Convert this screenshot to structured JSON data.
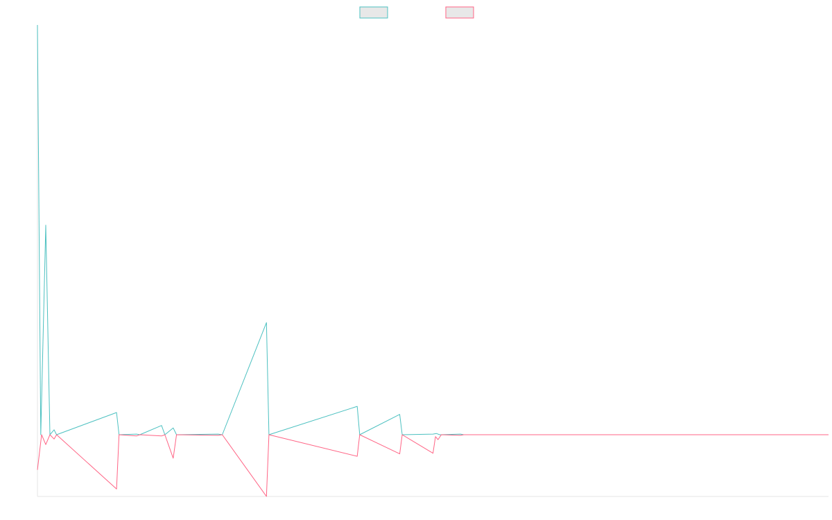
{
  "chart_data": {
    "type": "line",
    "title": "",
    "xlabel": "",
    "ylabel": "",
    "grid": false,
    "legend_position": "top",
    "y_baseline": 0,
    "ylim": [
      -100,
      665
    ],
    "xlim": [
      0,
      95
    ],
    "series": [
      {
        "name": "",
        "color": "#4bc0c0",
        "legend_fill": "#e8e8e8",
        "points": [
          [
            0,
            665
          ],
          [
            0.4,
            0
          ],
          [
            1,
            340
          ],
          [
            1.5,
            0
          ],
          [
            2,
            8
          ],
          [
            2.3,
            0
          ],
          [
            9.5,
            36
          ],
          [
            9.8,
            0
          ],
          [
            11.9,
            1
          ],
          [
            12.3,
            0
          ],
          [
            14.9,
            15
          ],
          [
            15.3,
            0
          ],
          [
            16.3,
            11
          ],
          [
            16.7,
            0
          ],
          [
            21.7,
            1
          ],
          [
            22.2,
            0
          ],
          [
            27.5,
            182
          ],
          [
            27.8,
            0
          ],
          [
            38.4,
            46
          ],
          [
            38.7,
            0
          ],
          [
            43.5,
            33
          ],
          [
            43.8,
            0
          ],
          [
            47.5,
            1
          ],
          [
            47.9,
            2
          ],
          [
            48.3,
            0
          ],
          [
            50.8,
            1
          ],
          [
            51.2,
            0
          ],
          [
            95,
            0
          ]
        ]
      },
      {
        "name": "",
        "color": "#ff6384",
        "legend_fill": "#e8e8e8",
        "points": [
          [
            0,
            -57
          ],
          [
            0.5,
            0
          ],
          [
            1,
            -16
          ],
          [
            1.5,
            0
          ],
          [
            2,
            -7
          ],
          [
            2.3,
            0
          ],
          [
            9.5,
            -88
          ],
          [
            9.8,
            0
          ],
          [
            11.9,
            -2
          ],
          [
            12.3,
            0
          ],
          [
            14.9,
            -2
          ],
          [
            15.3,
            0
          ],
          [
            16.3,
            -38
          ],
          [
            16.7,
            0
          ],
          [
            21.7,
            -1
          ],
          [
            22.2,
            0
          ],
          [
            27.5,
            -100
          ],
          [
            27.8,
            0
          ],
          [
            38.4,
            -35
          ],
          [
            38.7,
            0
          ],
          [
            43.5,
            -31
          ],
          [
            43.8,
            0
          ],
          [
            47.5,
            -30
          ],
          [
            47.8,
            -3
          ],
          [
            48.1,
            -8
          ],
          [
            48.5,
            0
          ],
          [
            50.8,
            -1
          ],
          [
            51.2,
            0
          ],
          [
            95,
            0
          ]
        ]
      }
    ]
  }
}
